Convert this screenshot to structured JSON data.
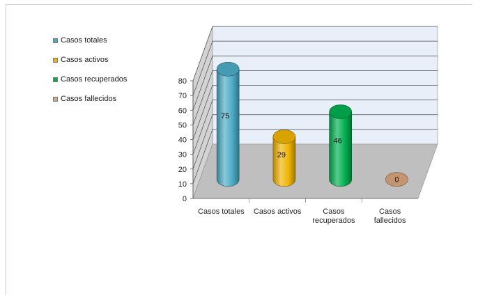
{
  "chart_data": {
    "type": "bar",
    "title": "",
    "xlabel": "",
    "ylabel": "",
    "categories": [
      "Casos totales",
      "Casos activos",
      "Casos recuperados",
      "Casos fallecidos"
    ],
    "category_lines": [
      [
        "Casos totales"
      ],
      [
        "Casos activos"
      ],
      [
        "Casos",
        "recuperados"
      ],
      [
        "Casos",
        "fallecidos"
      ]
    ],
    "values": [
      75,
      29,
      46,
      0
    ],
    "ylim": [
      0,
      80
    ],
    "yticks": [
      0,
      10,
      20,
      30,
      40,
      50,
      60,
      70,
      80
    ],
    "grid": true,
    "legend_position": "top-left",
    "style": "3d-cylinder",
    "colors": [
      "#4bacc6",
      "#f0b400",
      "#00b050",
      "#d9a57d"
    ],
    "legend": [
      {
        "label": "Casos totales",
        "color": "#4bacc6"
      },
      {
        "label": "Casos activos",
        "color": "#f0b400"
      },
      {
        "label": "Casos recuperados",
        "color": "#00b050"
      },
      {
        "label": "Casos fallecidos",
        "color": "#d9a57d"
      }
    ]
  }
}
